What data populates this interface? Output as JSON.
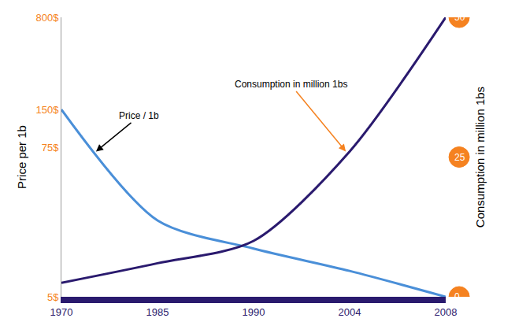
{
  "chart_data": {
    "type": "line",
    "categories": [
      "1970",
      "1985",
      "1990",
      "2004",
      "2008"
    ],
    "series": [
      {
        "name": "Price / 1b",
        "color": "#4a8fd8",
        "values": [
          150,
          20,
          12,
          8,
          5
        ]
      },
      {
        "name": "Consumption in million 1bs",
        "color": "#2a1a6e",
        "values": [
          2.5,
          6,
          10,
          26,
          50
        ],
        "axis": "y2"
      }
    ],
    "y_label": "Price per 1b",
    "y2_label": "Consumption in million 1bs",
    "ylim": [
      5,
      800
    ],
    "yticks": [
      {
        "value": 5,
        "label": "5$"
      },
      {
        "value": 75,
        "label": "75$"
      },
      {
        "value": 150,
        "label": "150$"
      },
      {
        "value": 800,
        "label": "800$"
      }
    ],
    "y2lim": [
      0,
      50
    ],
    "y2ticks": [
      0,
      25,
      50
    ],
    "log": "y",
    "grid": false
  }
}
